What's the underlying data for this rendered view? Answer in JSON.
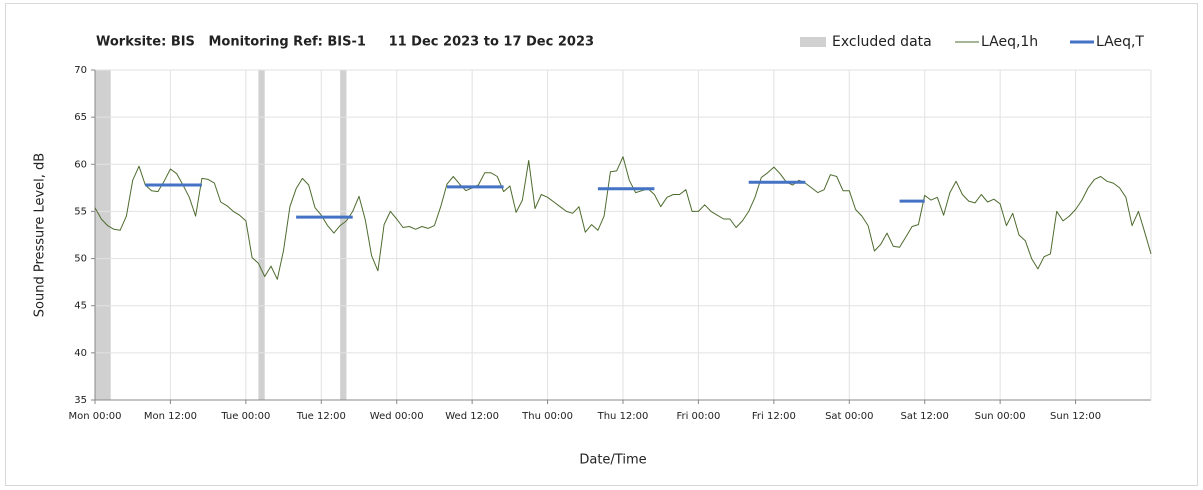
{
  "chart_data": {
    "type": "line",
    "title": "Worksite: BIS   Monitoring Ref: BIS-1     11 Dec 2023 to 17 Dec 2023",
    "ylabel": "Sound Pressure Level, dB",
    "xlabel": "Date/Time",
    "xlim": [
      0,
      168
    ],
    "ylim": [
      35,
      70
    ],
    "yticks": [
      35,
      40,
      45,
      50,
      55,
      60,
      65,
      70
    ],
    "xticks": [
      {
        "value": 0,
        "label": "Mon 00:00"
      },
      {
        "value": 12,
        "label": "Mon 12:00"
      },
      {
        "value": 24,
        "label": "Tue 00:00"
      },
      {
        "value": 36,
        "label": "Tue 12:00"
      },
      {
        "value": 48,
        "label": "Wed 00:00"
      },
      {
        "value": 60,
        "label": "Wed 12:00"
      },
      {
        "value": 72,
        "label": "Thu 00:00"
      },
      {
        "value": 84,
        "label": "Thu 12:00"
      },
      {
        "value": 96,
        "label": "Fri 00:00"
      },
      {
        "value": 108,
        "label": "Fri 12:00"
      },
      {
        "value": 120,
        "label": "Sat 00:00"
      },
      {
        "value": 132,
        "label": "Sat 12:00"
      },
      {
        "value": 144,
        "label": "Sun 00:00"
      },
      {
        "value": 156,
        "label": "Sun 12:00"
      }
    ],
    "grid": true,
    "legend": "top-right",
    "excluded": {
      "name": "Excluded data",
      "color": "#d0d0d0",
      "ranges": [
        [
          0,
          2.5
        ],
        [
          26,
          27
        ],
        [
          39,
          40
        ]
      ]
    },
    "series": [
      {
        "name": "LAeq,1h",
        "color": "#4e6b2e",
        "width": 1,
        "x": [
          0,
          1,
          2,
          3,
          4,
          5,
          6,
          7,
          8,
          9,
          10,
          11,
          12,
          13,
          14,
          15,
          16,
          17,
          18,
          19,
          20,
          21,
          22,
          23,
          24,
          25,
          26,
          27,
          28,
          29,
          30,
          31,
          32,
          33,
          34,
          35,
          36,
          37,
          38,
          39,
          40,
          41,
          42,
          43,
          44,
          45,
          46,
          47,
          48,
          49,
          50,
          51,
          52,
          53,
          54,
          55,
          56,
          57,
          58,
          59,
          60,
          61,
          62,
          63,
          64,
          65,
          66,
          67,
          68,
          69,
          70,
          71,
          72,
          73,
          74,
          75,
          76,
          77,
          78,
          79,
          80,
          81,
          82,
          83,
          84,
          85,
          86,
          87,
          88,
          89,
          90,
          91,
          92,
          93,
          94,
          95,
          96,
          97,
          98,
          99,
          100,
          101,
          102,
          103,
          104,
          105,
          106,
          107,
          108,
          109,
          110,
          111,
          112,
          113,
          114,
          115,
          116,
          117,
          118,
          119,
          120,
          121,
          122,
          123,
          124,
          125,
          126,
          127,
          128,
          129,
          130,
          131,
          132,
          133,
          134,
          135,
          136,
          137,
          138,
          139,
          140,
          141,
          142,
          143,
          144,
          145,
          146,
          147,
          148,
          149,
          150,
          151,
          152,
          153,
          154,
          155,
          156,
          157,
          158,
          159,
          160,
          161,
          162,
          163,
          164,
          165,
          166,
          167,
          168
        ],
        "values": [
          55.4,
          54.2,
          53.5,
          53.1,
          53.0,
          54.5,
          58.3,
          59.8,
          57.8,
          57.2,
          57.1,
          58.2,
          59.5,
          59.0,
          57.8,
          56.5,
          54.5,
          58.5,
          58.4,
          58.0,
          56.0,
          55.6,
          55.0,
          54.6,
          54.0,
          50.1,
          49.5,
          48.1,
          49.2,
          47.8,
          50.9,
          55.5,
          57.4,
          58.5,
          57.8,
          55.4,
          54.6,
          53.5,
          52.7,
          53.5,
          54.0,
          55.0,
          56.6,
          54.1,
          50.3,
          48.7,
          53.6,
          55.0,
          54.2,
          53.3,
          53.4,
          53.1,
          53.4,
          53.2,
          53.5,
          55.5,
          57.9,
          58.7,
          57.9,
          57.2,
          57.5,
          57.8,
          59.1,
          59.1,
          58.7,
          57.1,
          57.7,
          54.9,
          56.2,
          60.4,
          55.3,
          56.8,
          56.5,
          56.0,
          55.5,
          55.0,
          54.8,
          55.5,
          52.8,
          53.6,
          53.0,
          54.5,
          59.2,
          59.3,
          60.8,
          58.3,
          57.0,
          57.2,
          57.4,
          56.8,
          55.5,
          56.5,
          56.8,
          56.8,
          57.3,
          55.0,
          55.0,
          55.7,
          55.0,
          54.6,
          54.2,
          54.2,
          53.3,
          54.0,
          55.0,
          56.5,
          58.6,
          59.1,
          59.7,
          59.0,
          58.1,
          57.8,
          58.3,
          58.0,
          57.5,
          57.0,
          57.3,
          58.9,
          58.7,
          57.2,
          57.2,
          55.2,
          54.5,
          53.5,
          50.8,
          51.5,
          52.7,
          51.3,
          51.2,
          52.3,
          53.4,
          53.6,
          56.7,
          56.2,
          56.5,
          54.6,
          57.0,
          58.2,
          56.8,
          56.1,
          55.9,
          56.8,
          56.0,
          56.3,
          55.8,
          53.5,
          54.8,
          52.5,
          51.9,
          50.0,
          48.9,
          50.2,
          50.5,
          55.0,
          54.0,
          54.5,
          55.2,
          56.2,
          57.5,
          58.4,
          58.7,
          58.2,
          58.0,
          57.5,
          56.5,
          53.5,
          55.0,
          52.8,
          50.5
        ]
      },
      {
        "name": "LAeq,T",
        "color": "#4472c4",
        "width": 3,
        "x": [
          8,
          17,
          17,
          32,
          41,
          41,
          56,
          65,
          65,
          80,
          89,
          89,
          104,
          113,
          113,
          128,
          132
        ],
        "values": [
          57.8,
          57.8,
          null,
          54.4,
          54.4,
          null,
          57.6,
          57.6,
          null,
          57.4,
          57.4,
          null,
          58.1,
          58.1,
          null,
          56.1,
          56.1
        ]
      }
    ]
  }
}
